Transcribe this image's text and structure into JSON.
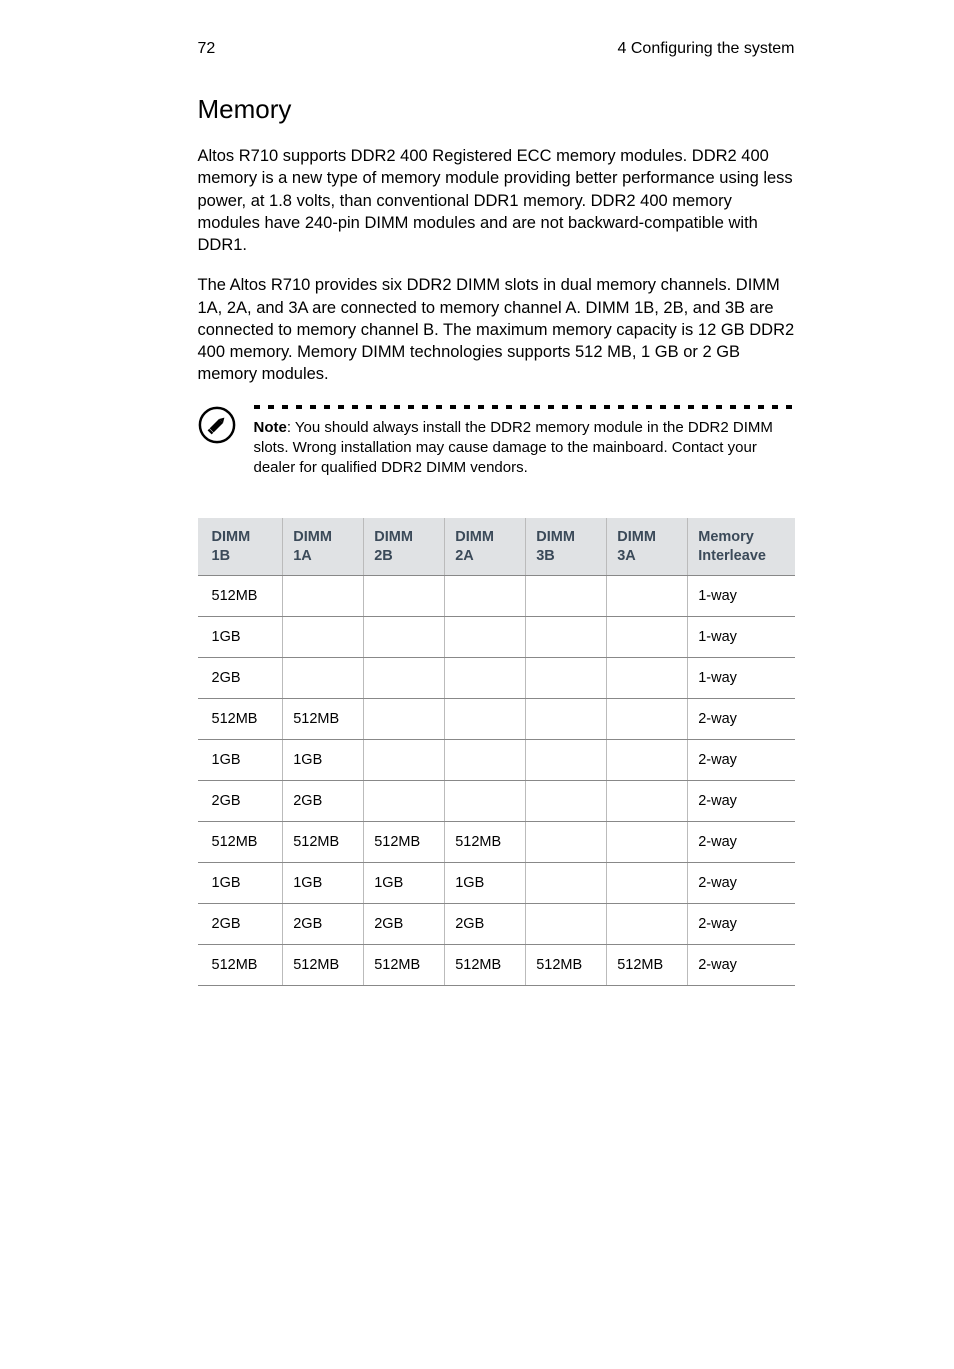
{
  "page": {
    "number": "72",
    "section": "4 Configuring the system"
  },
  "heading": "Memory",
  "paragraphs": [
    "Altos R710 supports DDR2 400 Registered ECC memory modules. DDR2 400 memory is a new type of memory module providing better performance using less power, at 1.8 volts, than conventional DDR1 memory. DDR2 400 memory modules have 240-pin DIMM modules and are not backward-compatible with DDR1.",
    "The Altos R710 provides six DDR2 DIMM slots in dual memory channels. DIMM 1A, 2A, and 3A are connected to memory channel A. DIMM 1B, 2B, and 3B are connected to memory channel B. The maximum memory capacity is 12 GB DDR2 400 memory. Memory DIMM technologies supports 512 MB, 1 GB or 2 GB memory modules."
  ],
  "note": {
    "label": "Note",
    "text": ": You should always install the DDR2 memory module in the DDR2 DIMM slots. Wrong installation may cause damage to the mainboard. Contact your dealer for qualified DDR2 DIMM vendors."
  },
  "table": {
    "columns": [
      {
        "l1": "DIMM",
        "l2": "1B"
      },
      {
        "l1": "DIMM",
        "l2": "1A"
      },
      {
        "l1": "DIMM",
        "l2": "2B"
      },
      {
        "l1": "DIMM",
        "l2": "2A"
      },
      {
        "l1": "DIMM",
        "l2": "3B"
      },
      {
        "l1": "DIMM",
        "l2": "3A"
      },
      {
        "l1": "Memory",
        "l2": "Interleave"
      }
    ],
    "rows": [
      [
        "512MB",
        "",
        "",
        "",
        "",
        "",
        "1-way"
      ],
      [
        "1GB",
        "",
        "",
        "",
        "",
        "",
        "1-way"
      ],
      [
        "2GB",
        "",
        "",
        "",
        "",
        "",
        "1-way"
      ],
      [
        "512MB",
        "512MB",
        "",
        "",
        "",
        "",
        "2-way"
      ],
      [
        "1GB",
        "1GB",
        "",
        "",
        "",
        "",
        "2-way"
      ],
      [
        "2GB",
        "2GB",
        "",
        "",
        "",
        "",
        "2-way"
      ],
      [
        "512MB",
        "512MB",
        "512MB",
        "512MB",
        "",
        "",
        "2-way"
      ],
      [
        "1GB",
        "1GB",
        "1GB",
        "1GB",
        "",
        "",
        "2-way"
      ],
      [
        "2GB",
        "2GB",
        "2GB",
        "2GB",
        "",
        "",
        "2-way"
      ],
      [
        "512MB",
        "512MB",
        "512MB",
        "512MB",
        "512MB",
        "512MB",
        "2-way"
      ]
    ],
    "header_bg": "#e0e2e4",
    "header_color": "#3b4a59",
    "border_color": "#888888"
  }
}
